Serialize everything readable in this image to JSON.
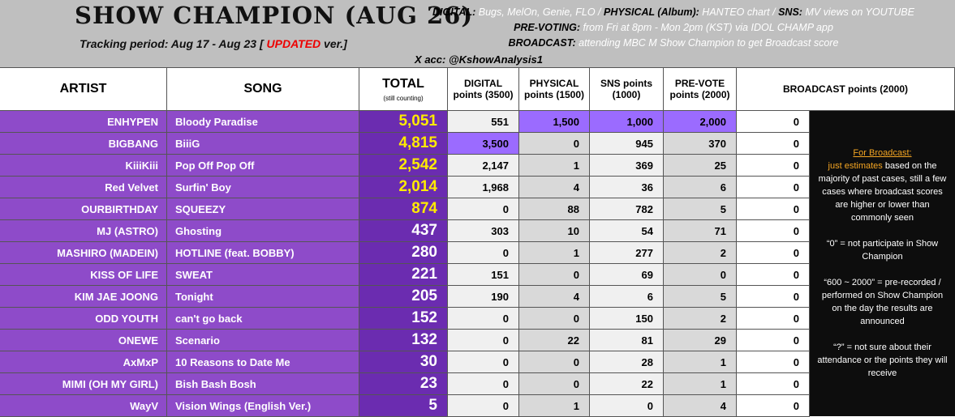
{
  "header": {
    "title": "SHOW CHAMPION (AUG 26)",
    "tracking": "Tracking period: Aug 17 - Aug 23 [",
    "updated": "UPDATED",
    "version": "ver.]",
    "info": [
      [
        {
          "label": "DIGITAL:",
          "text": "Bugs, MelOn, Genie, FLO /"
        },
        {
          "label": "PHYSICAL (Album):",
          "text": "HANTEO chart /"
        },
        {
          "label": "SNS:",
          "text": "MV views on YOUTUBE"
        }
      ],
      [
        {
          "label": "PRE-VOTING:",
          "text": "from Fri at 8pm - Mon 2pm (KST) via IDOL CHAMP app"
        }
      ],
      [
        {
          "label": "BROADCAST:",
          "text": "attending MBC M Show Champion to get Broadcast score"
        }
      ]
    ],
    "account": "X acc: @KshowAnalysis1"
  },
  "table": {
    "columns": {
      "artist": "ARTIST",
      "song": "SONG",
      "total": "TOTAL",
      "total_note": "(still counting)",
      "digital": "DIGITAL points (3500)",
      "physical": "PHYSICAL points (1500)",
      "sns": "SNS points (1000)",
      "prevote": "PRE-VOTE points (2000)",
      "broadcast": "BROADCAST points (2000)"
    },
    "rows": [
      {
        "artist": "ENHYPEN",
        "song": "Bloody Paradise",
        "total": "5,051",
        "digital": "551",
        "physical": "1,500",
        "sns": "1,000",
        "prevote": "2,000",
        "broadcast": "0"
      },
      {
        "artist": "BIGBANG",
        "song": "BiiiG",
        "total": "4,815",
        "digital": "3,500",
        "physical": "0",
        "sns": "945",
        "prevote": "370",
        "broadcast": "0"
      },
      {
        "artist": "KiiiKiii",
        "song": "Pop Off Pop Off",
        "total": "2,542",
        "digital": "2,147",
        "physical": "1",
        "sns": "369",
        "prevote": "25",
        "broadcast": "0"
      },
      {
        "artist": "Red Velvet",
        "song": "Surfin' Boy",
        "total": "2,014",
        "digital": "1,968",
        "physical": "4",
        "sns": "36",
        "prevote": "6",
        "broadcast": "0"
      },
      {
        "artist": "OURBIRTHDAY",
        "song": "SQUEEZY",
        "total": "874",
        "digital": "0",
        "physical": "88",
        "sns": "782",
        "prevote": "5",
        "broadcast": "0"
      },
      {
        "artist": "MJ (ASTRO)",
        "song": "Ghosting",
        "total": "437",
        "digital": "303",
        "physical": "10",
        "sns": "54",
        "prevote": "71",
        "broadcast": "0"
      },
      {
        "artist": "MASHIRO (MADEIN)",
        "song": "HOTLINE (feat. BOBBY)",
        "total": "280",
        "digital": "0",
        "physical": "1",
        "sns": "277",
        "prevote": "2",
        "broadcast": "0"
      },
      {
        "artist": "KISS OF LIFE",
        "song": "SWEAT",
        "total": "221",
        "digital": "151",
        "physical": "0",
        "sns": "69",
        "prevote": "0",
        "broadcast": "0"
      },
      {
        "artist": "KIM JAE JOONG",
        "song": "Tonight",
        "total": "205",
        "digital": "190",
        "physical": "4",
        "sns": "6",
        "prevote": "5",
        "broadcast": "0"
      },
      {
        "artist": "ODD YOUTH",
        "song": "can't go back",
        "total": "152",
        "digital": "0",
        "physical": "0",
        "sns": "150",
        "prevote": "2",
        "broadcast": "0"
      },
      {
        "artist": "ONEWE",
        "song": "Scenario",
        "total": "132",
        "digital": "0",
        "physical": "22",
        "sns": "81",
        "prevote": "29",
        "broadcast": "0"
      },
      {
        "artist": "AxMxP",
        "song": "10 Reasons to Date Me",
        "total": "30",
        "digital": "0",
        "physical": "0",
        "sns": "28",
        "prevote": "1",
        "broadcast": "0"
      },
      {
        "artist": "MIMI (OH MY GIRL)",
        "song": "Bish Bash Bosh",
        "total": "23",
        "digital": "0",
        "physical": "0",
        "sns": "22",
        "prevote": "1",
        "broadcast": "0"
      },
      {
        "artist": "WayV",
        "song": "Vision Wings (English Ver.)",
        "total": "5",
        "digital": "0",
        "physical": "1",
        "sns": "0",
        "prevote": "4",
        "broadcast": "0"
      }
    ]
  },
  "notes": {
    "heading": "For Broadcast:",
    "estimate": "just estimates",
    "estimate_rest": "based on the majority of past cases, still a few cases where broadcast scores are higher or lower than commonly seen",
    "items": [
      "“0” = not participate in Show Champion",
      "“600 ~ 2000” = pre-recorded / performed on Show Champion on the day the results are announced",
      "“?” = not sure about their attendance or the points they will receive"
    ]
  }
}
